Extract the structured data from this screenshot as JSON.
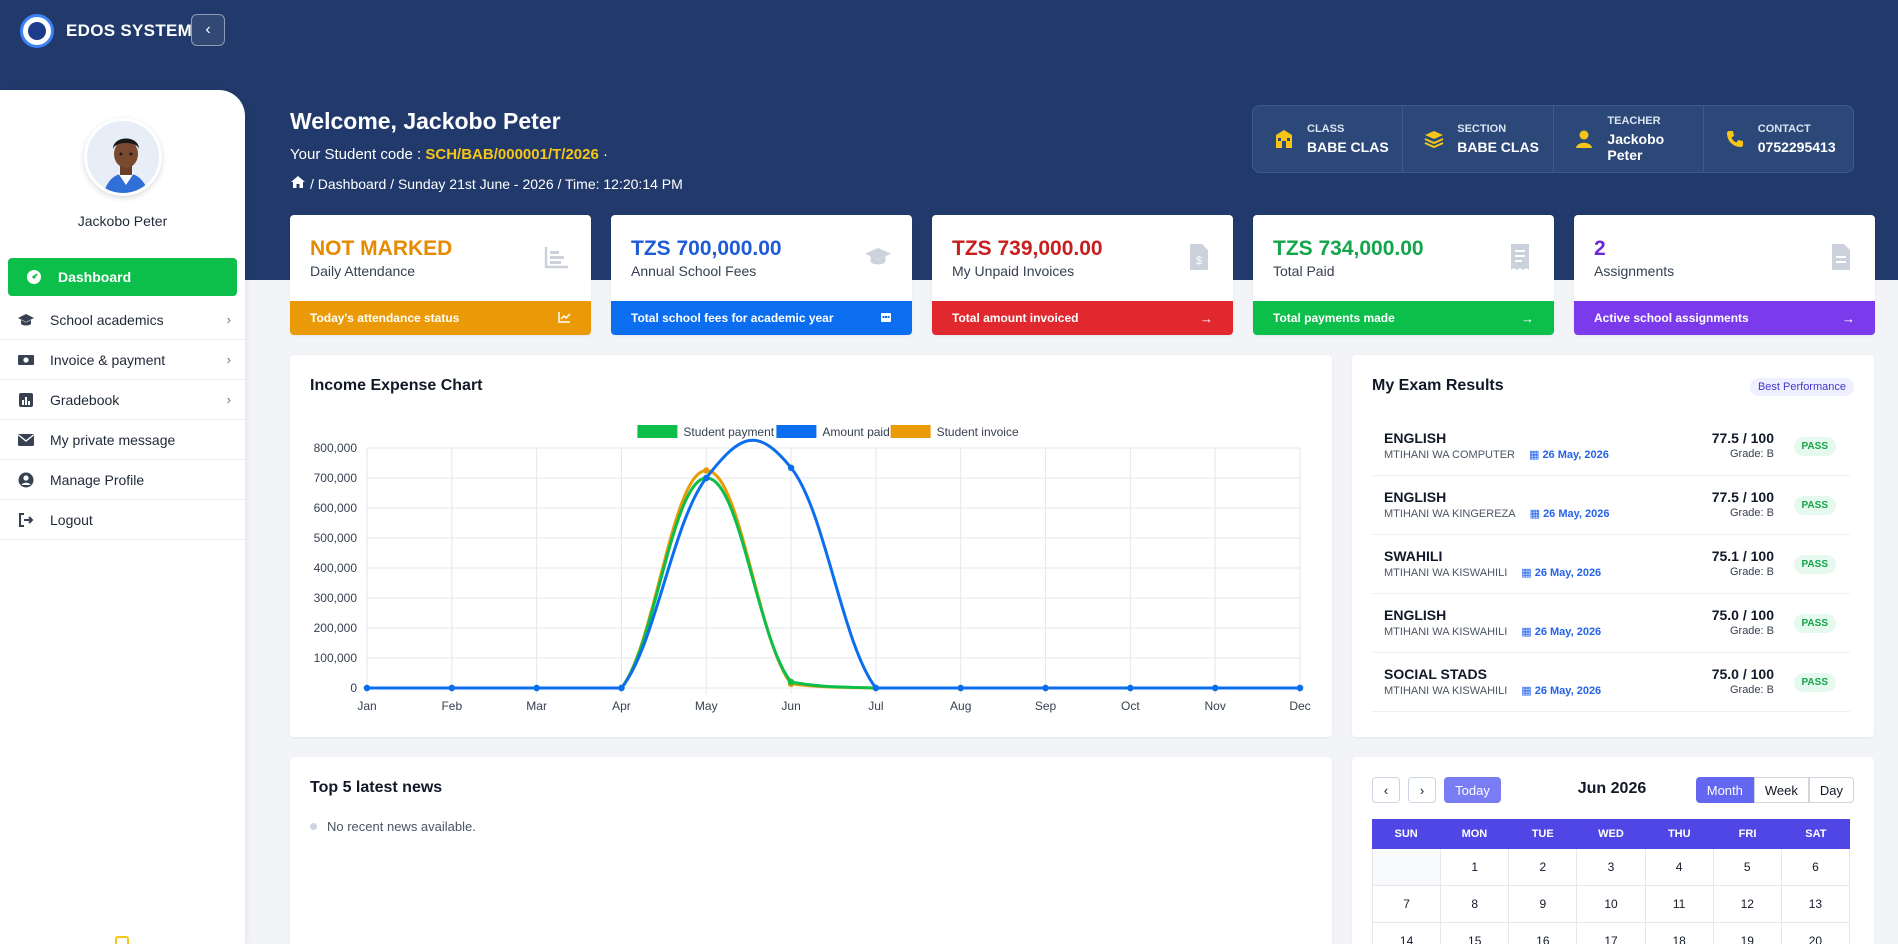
{
  "brand": {
    "name": "EDOS SYSTEM"
  },
  "sidebar": {
    "profile_name": "Jackobo Peter",
    "items": [
      {
        "label": "Dashboard",
        "icon": "dashboard-icon",
        "active": true,
        "chevron": false
      },
      {
        "label": "School academics",
        "icon": "graduation-cap-icon",
        "chevron": true
      },
      {
        "label": "Invoice & payment",
        "icon": "money-icon",
        "chevron": true
      },
      {
        "label": "Gradebook",
        "icon": "chart-icon",
        "chevron": true
      },
      {
        "label": "My private message",
        "icon": "envelope-icon",
        "chevron": false
      },
      {
        "label": "Manage Profile",
        "icon": "user-circle-icon",
        "chevron": false
      },
      {
        "label": "Logout",
        "icon": "logout-icon",
        "chevron": false
      }
    ]
  },
  "header": {
    "welcome": "Welcome, Jackobo Peter",
    "student_code_label": "Your Student code :",
    "student_code": "SCH/BAB/000001/T/2026",
    "student_code_suffix": "·",
    "breadcrumb": "/ Dashboard / Sunday 21st June - 2026 / Time: 12:20:14 PM"
  },
  "info": [
    {
      "label": "CLASS",
      "value": "BABE CLAS",
      "icon": "school-icon"
    },
    {
      "label": "SECTION",
      "value": "BABE CLAS",
      "icon": "layers-icon"
    },
    {
      "label": "TEACHER",
      "value": "Jackobo Peter",
      "icon": "teacher-icon"
    },
    {
      "label": "CONTACT",
      "value": "0752295413",
      "icon": "phone-icon"
    }
  ],
  "stats": [
    {
      "value": "NOT MARKED",
      "label": "Daily Attendance",
      "footer": "Today's attendance status",
      "color": "#e68a00",
      "footer_color": "#e99a06",
      "icon": "bar-chart-icon"
    },
    {
      "value": "TZS 700,000.00",
      "label": "Annual School Fees",
      "footer": "Total school fees for academic year",
      "color": "#1e5bd6",
      "footer_color": "#0b6ef0",
      "icon": "graduation-cap-icon"
    },
    {
      "value": "TZS 739,000.00",
      "label": "My Unpaid Invoices",
      "footer": "Total amount invoiced",
      "color": "#c81e1e",
      "footer_color": "#e0282e",
      "icon": "invoice-icon"
    },
    {
      "value": "TZS 734,000.00",
      "label": "Total Paid",
      "footer": "Total payments made",
      "color": "#12a54a",
      "footer_color": "#0cbf4a",
      "icon": "receipt-icon"
    },
    {
      "value": "2",
      "label": "Assignments",
      "footer": "Active school assignments",
      "color": "#6d28d9",
      "footer_color": "#7c3aed",
      "icon": "document-icon"
    }
  ],
  "income_chart": {
    "title": "Income Expense Chart"
  },
  "chart_data": {
    "type": "line",
    "title": "",
    "categories": [
      "Jan",
      "Feb",
      "Mar",
      "Apr",
      "May",
      "Jun",
      "Jul",
      "Aug",
      "Sep",
      "Oct",
      "Nov",
      "Dec"
    ],
    "series": [
      {
        "name": "Student payment",
        "color": "#0cbf4a",
        "values": [
          0,
          0,
          0,
          0,
          700000,
          20000,
          0,
          0,
          0,
          0,
          0,
          0
        ]
      },
      {
        "name": "Amount paid",
        "color": "#0b6ef0",
        "values": [
          0,
          0,
          0,
          0,
          700000,
          734000,
          0,
          0,
          0,
          0,
          0,
          0
        ]
      },
      {
        "name": "Student invoice",
        "color": "#e99a06",
        "values": [
          0,
          0,
          0,
          0,
          725000,
          14000,
          0,
          0,
          0,
          0,
          0,
          0
        ]
      }
    ],
    "yticks": [
      "0",
      "100,000",
      "200,000",
      "300,000",
      "400,000",
      "500,000",
      "600,000",
      "700,000",
      "800,000"
    ],
    "ylim": [
      0,
      800000
    ],
    "legend": "top-center",
    "grid": true
  },
  "exam": {
    "title": "My Exam Results",
    "badge": "Best Performance",
    "rows": [
      {
        "subject": "ENGLISH",
        "exam": "MTIHANI WA COMPUTER",
        "date": "26 May, 2026",
        "score": "77.5 / 100",
        "grade": "Grade: B",
        "status": "PASS"
      },
      {
        "subject": "ENGLISH",
        "exam": "MTIHANI WA KINGEREZA",
        "date": "26 May, 2026",
        "score": "77.5 / 100",
        "grade": "Grade: B",
        "status": "PASS"
      },
      {
        "subject": "SWAHILI",
        "exam": "MTIHANI WA KISWAHILI",
        "date": "26 May, 2026",
        "score": "75.1 / 100",
        "grade": "Grade: B",
        "status": "PASS"
      },
      {
        "subject": "ENGLISH",
        "exam": "MTIHANI WA KISWAHILI",
        "date": "26 May, 2026",
        "score": "75.0 / 100",
        "grade": "Grade: B",
        "status": "PASS"
      },
      {
        "subject": "SOCIAL STADS",
        "exam": "MTIHANI WA KISWAHILI",
        "date": "26 May, 2026",
        "score": "75.0 / 100",
        "grade": "Grade: B",
        "status": "PASS"
      }
    ]
  },
  "news": {
    "title": "Top 5 latest news",
    "empty": "No recent news available."
  },
  "calendar": {
    "prev": "‹",
    "next": "›",
    "today": "Today",
    "title": "Jun 2026",
    "views": [
      {
        "label": "Month",
        "active": true
      },
      {
        "label": "Week",
        "active": false
      },
      {
        "label": "Day",
        "active": false
      }
    ],
    "days": [
      "SUN",
      "MON",
      "TUE",
      "WED",
      "THU",
      "FRI",
      "SAT"
    ],
    "weeks": [
      [
        "",
        "1",
        "2",
        "3",
        "4",
        "5",
        "6"
      ],
      [
        "7",
        "8",
        "9",
        "10",
        "11",
        "12",
        "13"
      ],
      [
        "14",
        "15",
        "16",
        "17",
        "18",
        "19",
        "20"
      ]
    ]
  }
}
